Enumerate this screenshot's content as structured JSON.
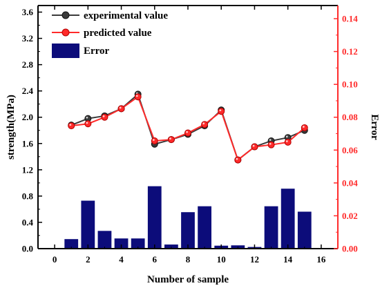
{
  "chart_data": {
    "type": "bar",
    "xlabel": "Number of sample",
    "ylabel_left": "strength(MPa)",
    "ylabel_right": "Error",
    "xlim": [
      -1,
      17
    ],
    "ylim_left": [
      0,
      3.7
    ],
    "ylim_right": [
      0,
      0.148
    ],
    "x_ticks": [
      0,
      2,
      4,
      6,
      8,
      10,
      12,
      14,
      16
    ],
    "x_tick_labels": [
      "0",
      "2",
      "4",
      "6",
      "8",
      "10",
      "12",
      "14",
      "16"
    ],
    "y_left_ticks": [
      0,
      0.4,
      0.8,
      1.2,
      1.6,
      2.0,
      2.4,
      2.8,
      3.2,
      3.6
    ],
    "y_left_tick_labels": [
      "0.0",
      "0.4",
      "0.8",
      "1.2",
      "1.6",
      "2.0",
      "2.4",
      "2.8",
      "3.2",
      "3.6"
    ],
    "y_right_ticks": [
      0,
      0.02,
      0.04,
      0.06,
      0.08,
      0.1,
      0.12,
      0.14
    ],
    "y_right_tick_labels": [
      "0.00",
      "0.02",
      "0.04",
      "0.06",
      "0.08",
      "0.10",
      "0.12",
      "0.14"
    ],
    "x": [
      1,
      2,
      3,
      4,
      5,
      6,
      7,
      8,
      9,
      10,
      11,
      12,
      13,
      14,
      15
    ],
    "series": [
      {
        "name": "experimental value",
        "type": "line",
        "axis": "left",
        "color": "#3a3a3a",
        "values": [
          1.88,
          1.98,
          2.02,
          2.13,
          2.35,
          1.59,
          1.66,
          1.74,
          1.87,
          2.11,
          1.35,
          1.55,
          1.64,
          1.69,
          1.8
        ]
      },
      {
        "name": "predicted value",
        "type": "line",
        "axis": "left",
        "color": "#ff2a2a",
        "values": [
          1.87,
          1.9,
          2.0,
          2.13,
          2.31,
          1.64,
          1.66,
          1.76,
          1.89,
          2.09,
          1.35,
          1.55,
          1.58,
          1.62,
          1.84
        ]
      },
      {
        "name": "Error",
        "type": "bar",
        "axis": "right",
        "color": "#0c0c7a",
        "values": [
          0.0058,
          0.0292,
          0.0108,
          0.0062,
          0.0062,
          0.038,
          0.0025,
          0.0222,
          0.0258,
          0.0018,
          0.002,
          0.001,
          0.0258,
          0.0365,
          0.0225
        ]
      }
    ],
    "legend_position": "top-left",
    "grid": false,
    "colors": {
      "axis_left": "#000000",
      "axis_right": "#ff2a2a"
    }
  }
}
